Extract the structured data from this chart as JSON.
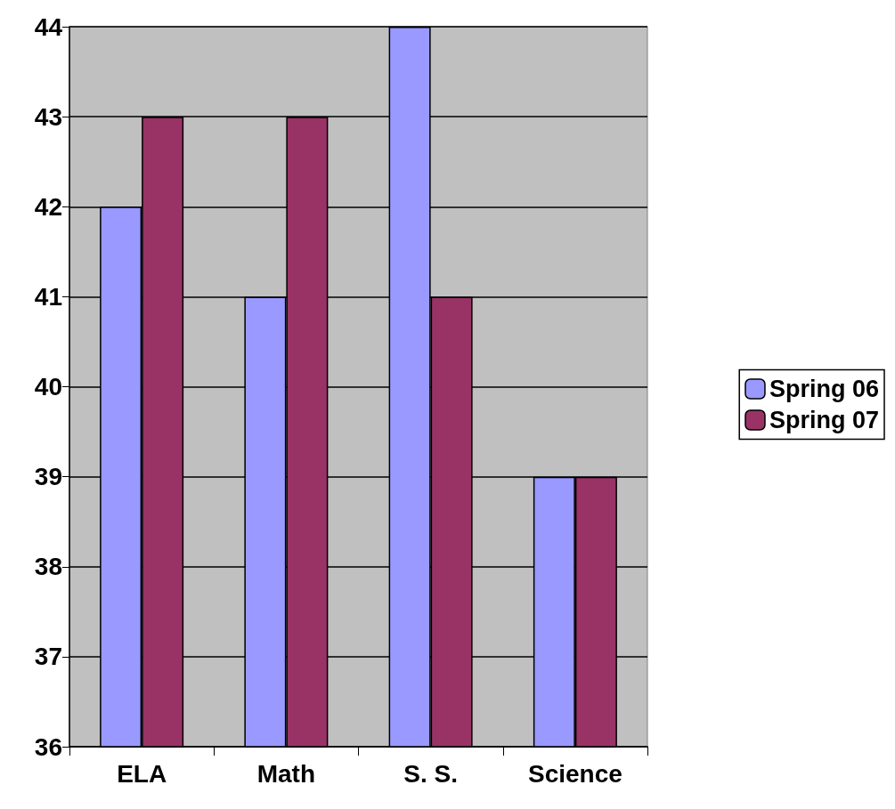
{
  "chart_data": {
    "type": "bar",
    "categories": [
      "ELA",
      "Math",
      "S. S.",
      "Science"
    ],
    "series": [
      {
        "name": "Spring 06",
        "color": "#9999ff",
        "values": [
          42,
          41,
          44,
          39
        ]
      },
      {
        "name": "Spring 07",
        "color": "#993366",
        "values": [
          43,
          43,
          41,
          39
        ]
      }
    ],
    "ylim": [
      36,
      44
    ],
    "yticks": [
      36,
      37,
      38,
      39,
      40,
      41,
      42,
      43,
      44
    ],
    "grid": "y",
    "legend": "right"
  }
}
